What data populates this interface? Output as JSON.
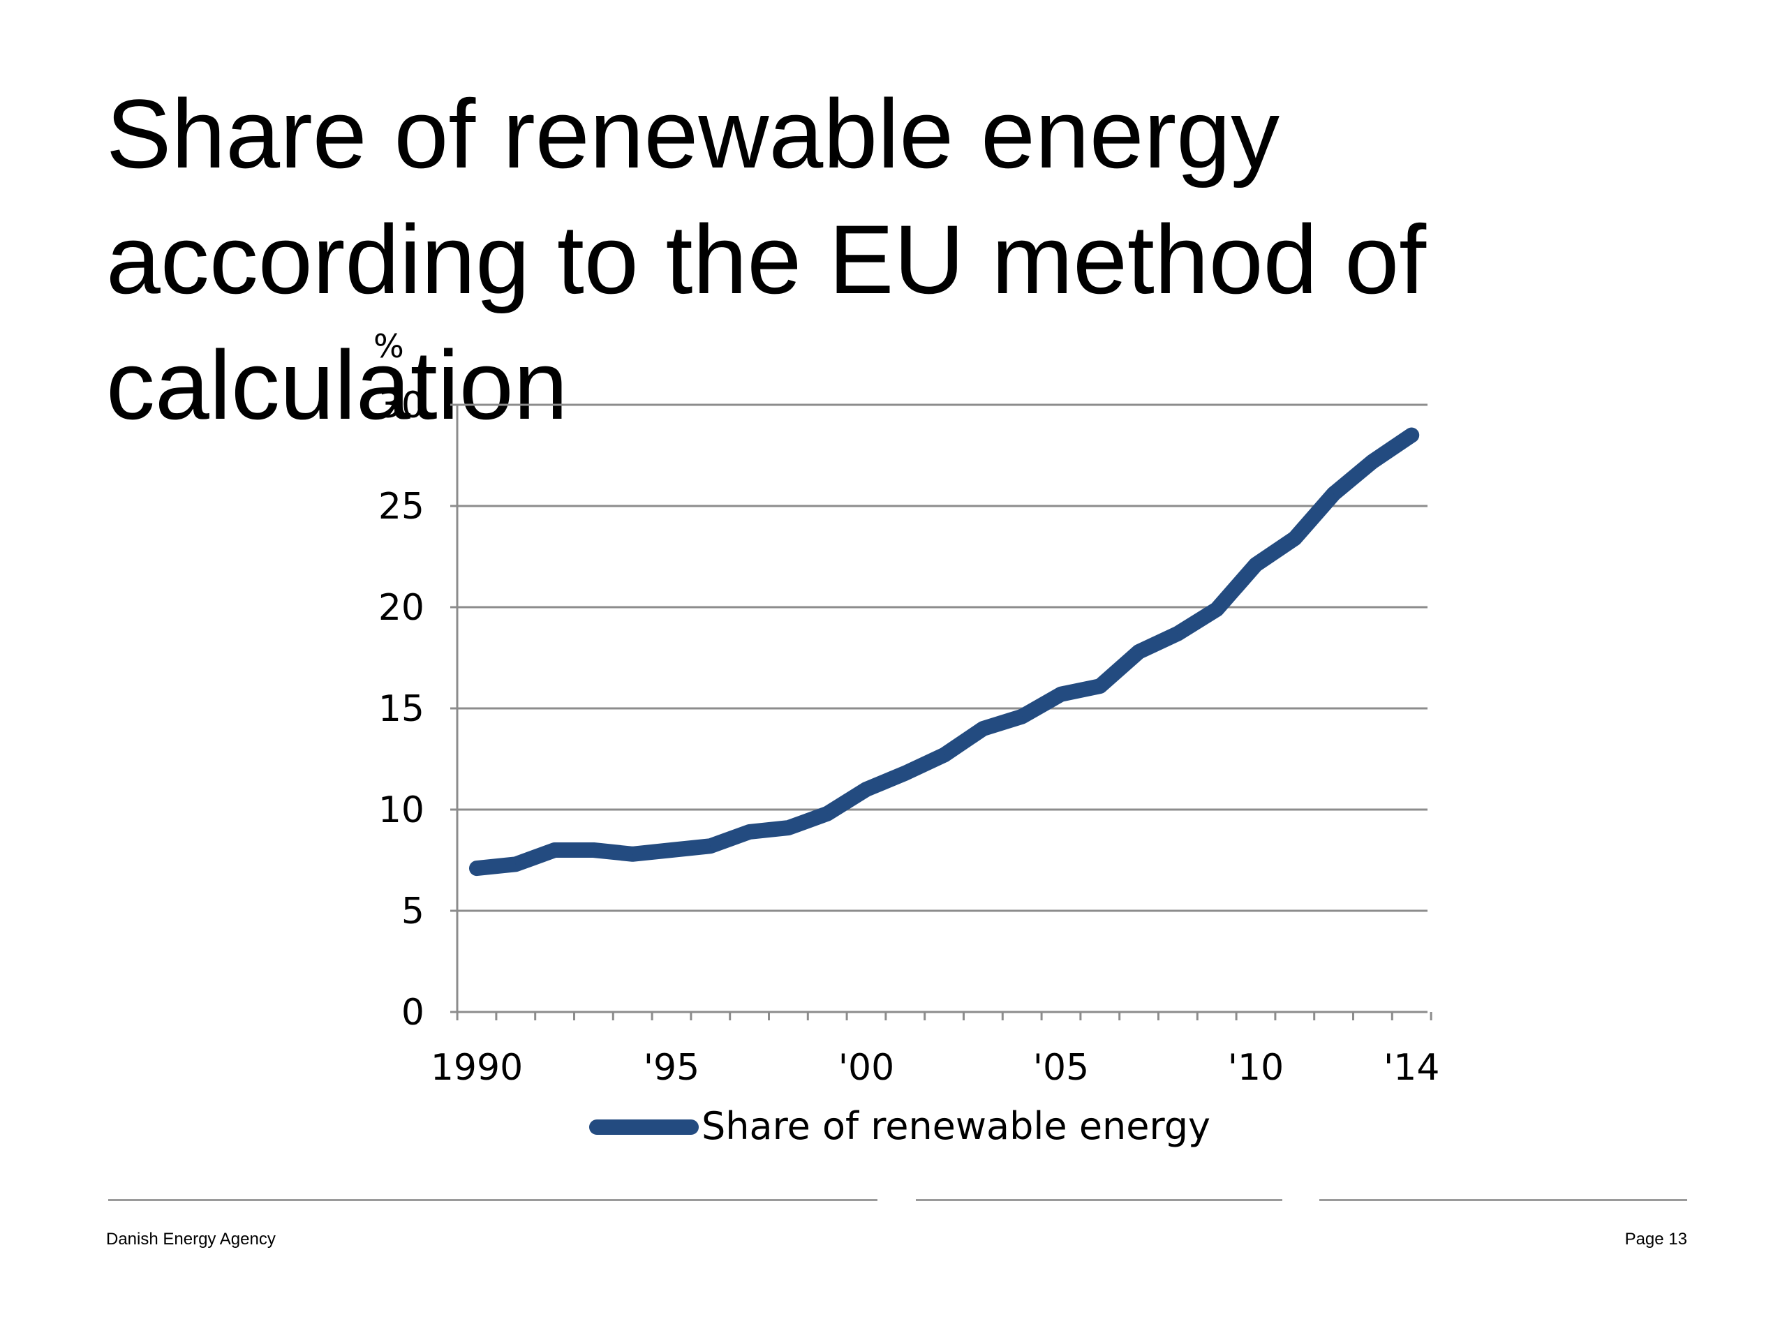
{
  "slide": {
    "title": "Share of renewable energy according to the EU method of calculation",
    "footer_left": "Danish Energy Agency",
    "footer_right": "Page 13"
  },
  "chart_data": {
    "type": "line",
    "title": "",
    "xlabel": "",
    "ylabel": "%",
    "ylim": [
      0,
      30
    ],
    "yticks": [
      0,
      5,
      10,
      15,
      20,
      25,
      30
    ],
    "x": [
      1990,
      1991,
      1992,
      1993,
      1994,
      1995,
      1996,
      1997,
      1998,
      1999,
      2000,
      2001,
      2002,
      2003,
      2004,
      2005,
      2006,
      2007,
      2008,
      2009,
      2010,
      2011,
      2012,
      2013,
      2014
    ],
    "xtick_labels": [
      {
        "year": 1990,
        "label": "1990"
      },
      {
        "year": 1995,
        "label": "'95"
      },
      {
        "year": 2000,
        "label": "'00"
      },
      {
        "year": 2005,
        "label": "'05"
      },
      {
        "year": 2010,
        "label": "'10"
      },
      {
        "year": 2014,
        "label": "'14"
      }
    ],
    "series": [
      {
        "name": "Share of renewable energy",
        "color": "#234b80",
        "values": [
          7.1,
          7.3,
          8.0,
          8.0,
          7.8,
          8.0,
          8.2,
          8.9,
          9.1,
          9.8,
          11.0,
          11.8,
          12.7,
          14.0,
          14.6,
          15.7,
          16.1,
          17.8,
          18.7,
          19.9,
          22.1,
          23.4,
          25.6,
          27.2,
          28.5
        ]
      }
    ],
    "grid": true,
    "legend_position": "bottom"
  }
}
